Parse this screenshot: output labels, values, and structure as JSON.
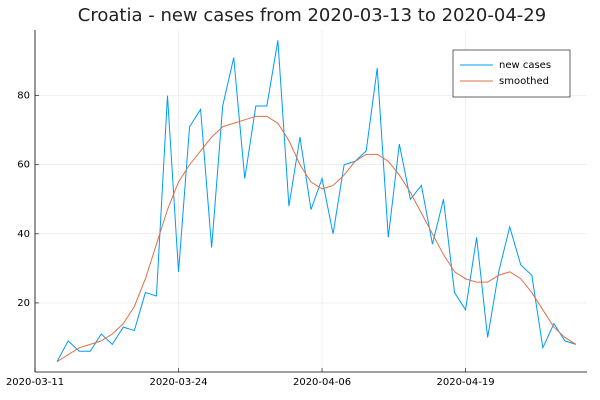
{
  "chart_data": {
    "type": "line",
    "title": "Croatia - new cases from 2020-03-13 to 2020-04-29",
    "x": [
      "2020-03-13",
      "2020-03-14",
      "2020-03-15",
      "2020-03-16",
      "2020-03-17",
      "2020-03-18",
      "2020-03-19",
      "2020-03-20",
      "2020-03-21",
      "2020-03-22",
      "2020-03-23",
      "2020-03-24",
      "2020-03-25",
      "2020-03-26",
      "2020-03-27",
      "2020-03-28",
      "2020-03-29",
      "2020-03-30",
      "2020-03-31",
      "2020-04-01",
      "2020-04-02",
      "2020-04-03",
      "2020-04-04",
      "2020-04-05",
      "2020-04-06",
      "2020-04-07",
      "2020-04-08",
      "2020-04-09",
      "2020-04-10",
      "2020-04-11",
      "2020-04-12",
      "2020-04-13",
      "2020-04-14",
      "2020-04-15",
      "2020-04-16",
      "2020-04-17",
      "2020-04-18",
      "2020-04-19",
      "2020-04-20",
      "2020-04-21",
      "2020-04-22",
      "2020-04-23",
      "2020-04-24",
      "2020-04-25",
      "2020-04-26",
      "2020-04-27",
      "2020-04-28",
      "2020-04-29"
    ],
    "series": [
      {
        "name": "new cases",
        "color": "#009af9",
        "values": [
          3,
          9,
          6,
          6,
          11,
          8,
          13,
          12,
          23,
          22,
          80,
          29,
          71,
          76,
          36,
          77,
          91,
          56,
          77,
          77,
          96,
          48,
          68,
          47,
          56,
          40,
          60,
          61,
          64,
          88,
          39,
          66,
          50,
          54,
          37,
          50,
          23,
          18,
          39,
          10,
          29,
          42,
          31,
          28,
          7,
          14,
          9,
          8
        ]
      },
      {
        "name": "smoothed",
        "color": "#e26f46",
        "values": [
          3,
          5,
          7,
          8,
          9,
          11,
          14,
          19,
          27,
          37,
          47,
          55,
          60,
          64,
          68,
          71,
          72,
          73,
          74,
          74,
          72,
          67,
          60,
          55,
          53,
          54,
          57,
          61,
          63,
          63,
          61,
          57,
          52,
          46,
          40,
          34,
          29,
          27,
          26,
          26,
          28,
          29,
          27,
          23,
          18,
          13,
          10,
          8
        ]
      }
    ],
    "xlim": [
      "2020-03-11",
      "2020-04-30"
    ],
    "xticks": [
      "2020-03-11",
      "2020-03-24",
      "2020-04-06",
      "2020-04-19"
    ],
    "ylim": [
      0,
      99
    ],
    "yticks": [
      20,
      40,
      60,
      80
    ],
    "grid": true,
    "legend": "top-right"
  }
}
